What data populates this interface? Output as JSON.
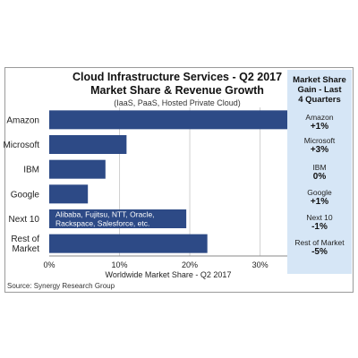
{
  "chart_data": {
    "type": "bar",
    "orientation": "horizontal",
    "title": "Cloud Infrastructure Services - Q2 2017",
    "title_line2": "Market Share & Revenue Growth",
    "subtitle": "(IaaS, PaaS, Hosted Private Cloud)",
    "categories": [
      "Amazon",
      "Microsoft",
      "IBM",
      "Google",
      "Next 10",
      "Rest of Market"
    ],
    "values": [
      34,
      11,
      8,
      5.5,
      19.5,
      22.5
    ],
    "bar_annotation": [
      "Alibaba, Fujitsu, NTT, Oracle,",
      "Rackspace, Salesforce, etc."
    ],
    "xlabel": "Worldwide Market Share - Q2 2017",
    "xticks": [
      "0%",
      "10%",
      "20%",
      "30%"
    ],
    "xlim": [
      0,
      34
    ],
    "bar_color": "#2d4a86",
    "side_panel": {
      "title": [
        "Market Share",
        "Gain - Last",
        "4 Quarters"
      ],
      "items": [
        {
          "name": "Amazon",
          "gain": "+1%"
        },
        {
          "name": "Microsoft",
          "gain": "+3%"
        },
        {
          "name": "IBM",
          "gain": "0%"
        },
        {
          "name": "Google",
          "gain": "+1%"
        },
        {
          "name": "Next 10",
          "gain": "-1%"
        },
        {
          "name": "Rest of Market",
          "gain": "-5%"
        }
      ]
    },
    "source": "Source: Synergy Research Group"
  }
}
